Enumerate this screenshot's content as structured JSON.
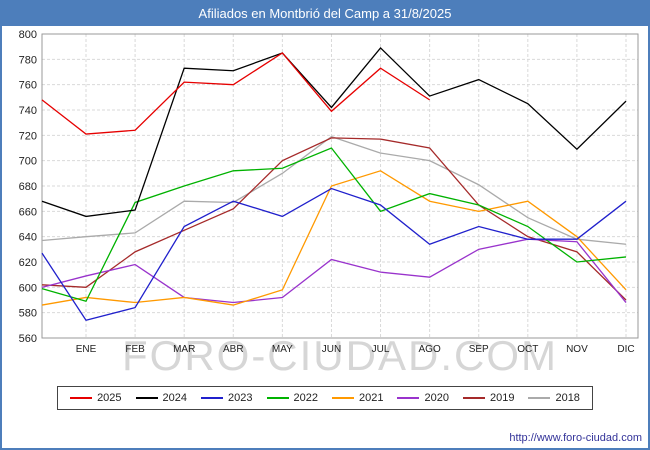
{
  "title": "Afiliados en Montbrió del Camp a 31/8/2025",
  "watermark": "FORO-CIUDAD.COM",
  "footer": {
    "url": "http://www.foro-ciudad.com"
  },
  "colors": {
    "titlebar": "#4d7ebb",
    "frame_border": "#4d7ebb",
    "grid": "#d9d9d9",
    "plot_border": "#999999",
    "watermark": "#d6d6d6",
    "tick_text": "#222222"
  },
  "chart_data": {
    "type": "line",
    "title": "Afiliados en Montbrió del Camp a 31/8/2025",
    "categories": [
      "ENE",
      "FEB",
      "MAR",
      "ABR",
      "MAY",
      "JUN",
      "JUL",
      "AGO",
      "SEP",
      "OCT",
      "NOV",
      "DIC"
    ],
    "xlabel": "",
    "ylabel": "",
    "ylim": [
      560,
      800
    ],
    "ytick_step": 20,
    "grid": true,
    "legend_position": "bottom",
    "first_value_is_axis_start": true,
    "series": [
      {
        "name": "2025",
        "color": "#e60000",
        "values": [
          748,
          721,
          724,
          762,
          760,
          785,
          739,
          773,
          748
        ]
      },
      {
        "name": "2024",
        "color": "#000000",
        "values": [
          668,
          656,
          661,
          773,
          771,
          785,
          742,
          789,
          751,
          764,
          745,
          709,
          747
        ]
      },
      {
        "name": "2023",
        "color": "#2020cc",
        "values": [
          627,
          574,
          584,
          648,
          668,
          656,
          678,
          665,
          634,
          648,
          638,
          638,
          668
        ]
      },
      {
        "name": "2022",
        "color": "#00b200",
        "values": [
          599,
          589,
          667,
          680,
          692,
          694,
          710,
          660,
          674,
          665,
          648,
          620,
          624
        ]
      },
      {
        "name": "2021",
        "color": "#ff9900",
        "values": [
          586,
          592,
          588,
          592,
          586,
          598,
          680,
          692,
          668,
          660,
          668,
          640,
          598
        ]
      },
      {
        "name": "2020",
        "color": "#9933cc",
        "values": [
          600,
          609,
          618,
          592,
          588,
          592,
          622,
          612,
          608,
          630,
          638,
          636,
          588
        ]
      },
      {
        "name": "2019",
        "color": "#a52a2a",
        "values": [
          602,
          600,
          628,
          645,
          662,
          700,
          718,
          717,
          710,
          665,
          640,
          628,
          590
        ]
      },
      {
        "name": "2018",
        "color": "#aaaaaa",
        "values": [
          637,
          640,
          643,
          668,
          667,
          690,
          719,
          706,
          700,
          681,
          655,
          638,
          634
        ]
      }
    ]
  }
}
